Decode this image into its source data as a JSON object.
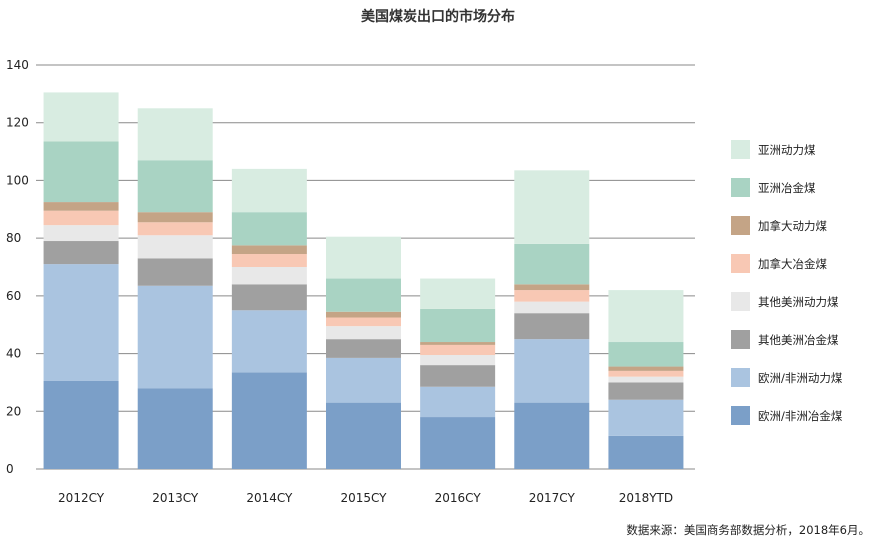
{
  "chart_data": {
    "type": "bar",
    "stacked": true,
    "title": "美国煤炭出口的市场分布",
    "xlabel": "",
    "ylabel": "",
    "ylim": [
      0,
      140
    ],
    "yticks": [
      "0",
      "20",
      "40",
      "60",
      "80",
      "100",
      "120",
      "140"
    ],
    "grid": true,
    "legend_position": "right",
    "categories": [
      "2012CY",
      "2013CY",
      "2014CY",
      "2015CY",
      "2016CY",
      "2017CY",
      "2018YTD"
    ],
    "series": [
      {
        "name": "欧洲/非洲冶金煤",
        "color": "#7b9fc8",
        "values": [
          30.5,
          28,
          33.5,
          23,
          18,
          23,
          11.5
        ]
      },
      {
        "name": "欧洲/非洲动力煤",
        "color": "#aac4e0",
        "values": [
          40.5,
          35.5,
          21.5,
          15.5,
          10.5,
          22,
          12.5
        ]
      },
      {
        "name": "其他美洲冶金煤",
        "color": "#a0a0a0",
        "values": [
          8,
          9.5,
          9,
          6.5,
          7.5,
          9,
          6
        ]
      },
      {
        "name": "其他美洲动力煤",
        "color": "#e8e8e8",
        "values": [
          5.5,
          8,
          6,
          4.5,
          3.5,
          4,
          2
        ]
      },
      {
        "name": "加拿大冶金煤",
        "color": "#f8c8b4",
        "values": [
          5,
          4.5,
          4.5,
          3,
          3.5,
          4,
          2
        ]
      },
      {
        "name": "加拿大动力煤",
        "color": "#c4a486",
        "values": [
          3,
          3.5,
          3,
          2,
          1,
          2,
          1.5
        ]
      },
      {
        "name": "亚洲冶金煤",
        "color": "#a9d3c3",
        "values": [
          21,
          18,
          11.5,
          11.5,
          11.5,
          14,
          8.5
        ]
      },
      {
        "name": "亚洲动力煤",
        "color": "#d8ece1",
        "values": [
          17,
          18,
          15,
          14.5,
          10.5,
          25.5,
          18
        ]
      }
    ],
    "source_note": "数据来源：美国商务部数据分析，2018年6月。"
  }
}
